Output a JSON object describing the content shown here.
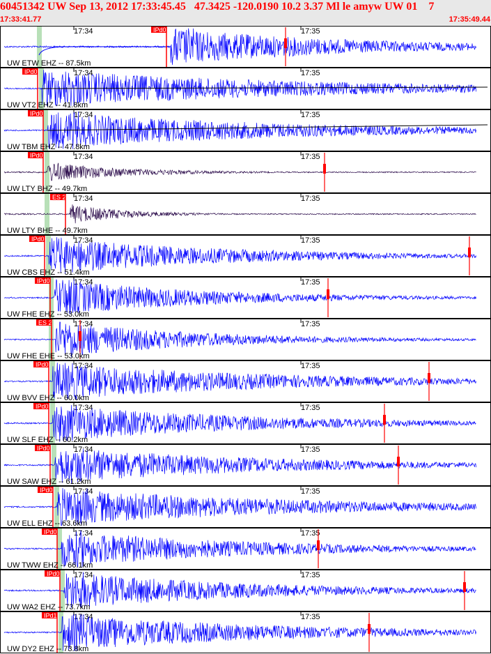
{
  "header": {
    "title": "60451342 UW Sep 13, 2012 17:33:45.45   47.3425 -120.0190 10.2 3.37 Ml le amyw UW 01    7",
    "start_time": "17:33:41.77",
    "end_time": "17:35:49.44"
  },
  "minute_labels": [
    "17:34",
    "17:35"
  ],
  "colors": {
    "header_bg": "#e8e8e8",
    "header_text": "#ff0000",
    "trace_blue": "#0000ff",
    "trace_dark": "#2a0a4a",
    "pick_red": "#ff0000",
    "pick_window": "#b8e0b8"
  },
  "traces": [
    {
      "label": "UW ETW EHZ -- 87.5km",
      "phase": "IPd0",
      "dark": false
    },
    {
      "label": "UW VT2 EHZ -- 41.8km",
      "phase": "IPd0",
      "dark": false
    },
    {
      "label": "UW TBM EHZ -- 47.8km",
      "phase": "IPd0",
      "dark": false
    },
    {
      "label": "UW LTY BHZ -- 49.7km",
      "phase": "IPd0",
      "dark": true
    },
    {
      "label": "UW LTY BHE -- 49.7km",
      "phase": "ES 2",
      "dark": true
    },
    {
      "label": "UW CBS EHZ -- 51.4km",
      "phase": "IPd0",
      "dark": false
    },
    {
      "label": "UW FHE EHZ -- 53.0km",
      "phase": "IPd0",
      "dark": false
    },
    {
      "label": "UW FHE EHE -- 53.0km",
      "phase": "ES 2",
      "dark": false
    },
    {
      "label": "UW BVV EHZ -- 60.0km",
      "phase": "IPd0",
      "dark": false
    },
    {
      "label": "UW SLF EHZ -- 60.2km",
      "phase": "IPd0",
      "dark": false
    },
    {
      "label": "UW SAW EHZ -- 61.2km",
      "phase": "IPd0",
      "dark": false
    },
    {
      "label": "UW ELL EHZ -- 63.6km",
      "phase": "IPd0",
      "dark": false
    },
    {
      "label": "UW TWW EHZ -- 66.1km",
      "phase": "IPd0",
      "dark": false
    },
    {
      "label": "UW WA2 EHZ -- 73.7km",
      "phase": "IPd0",
      "dark": false
    },
    {
      "label": "UW DY2 EHZ -- 73.8km",
      "phase": "IPd1",
      "dark": false
    }
  ]
}
